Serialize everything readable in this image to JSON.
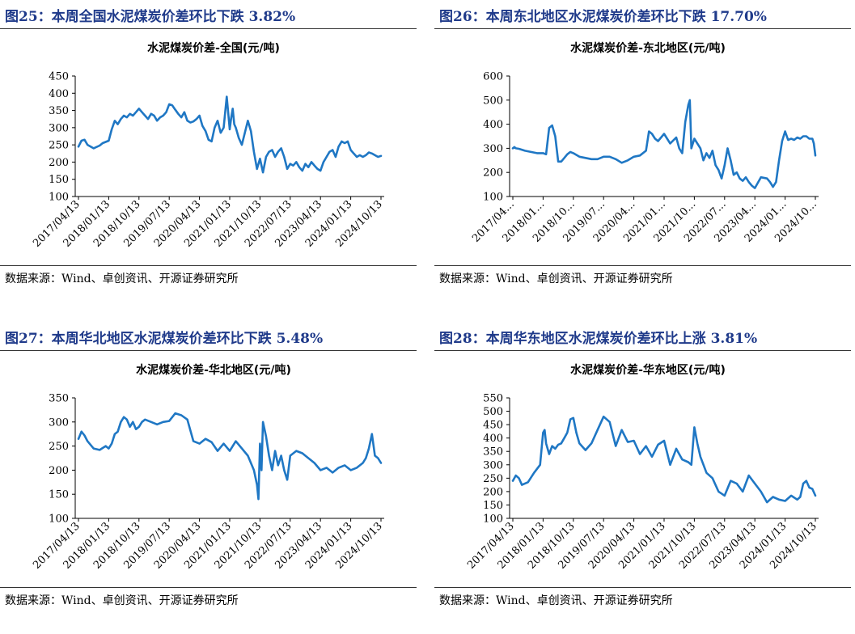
{
  "panels": [
    {
      "figure_title": "图25：本周全国水泥煤炭价差环比下跌 3.82%",
      "source": "数据来源：Wind、卓创资讯、开源证券研究所",
      "chart_data": {
        "type": "line",
        "title": "水泥煤炭价差-全国(元/吨)",
        "ylim": [
          100,
          450
        ],
        "yticks": [
          100,
          150,
          200,
          250,
          300,
          350,
          400,
          450
        ],
        "xlabels": [
          "2017/04/13",
          "2018/01/13",
          "2018/10/13",
          "2019/07/13",
          "2020/04/13",
          "2021/01/13",
          "2021/10/13",
          "2022/07/13",
          "2023/04/13",
          "2024/01/13",
          "2024/10/13"
        ],
        "series": [
          {
            "name": "",
            "color": "#1f77c4",
            "x": [
              0,
              0.1,
              0.2,
              0.3,
              0.5,
              0.7,
              0.8,
              1.0,
              1.1,
              1.2,
              1.3,
              1.4,
              1.5,
              1.6,
              1.7,
              1.8,
              1.9,
              2.0,
              2.1,
              2.2,
              2.3,
              2.4,
              2.5,
              2.6,
              2.7,
              2.8,
              2.9,
              3.0,
              3.1,
              3.2,
              3.3,
              3.4,
              3.5,
              3.6,
              3.7,
              3.8,
              3.9,
              4.0,
              4.1,
              4.2,
              4.3,
              4.4,
              4.5,
              4.6,
              4.7,
              4.8,
              4.9,
              5.0,
              5.05,
              5.1,
              5.15,
              5.2,
              5.3,
              5.4,
              5.5,
              5.6,
              5.7,
              5.8,
              5.9,
              6.0,
              6.1,
              6.2,
              6.3,
              6.4,
              6.5,
              6.6,
              6.7,
              6.8,
              6.9,
              7.0,
              7.1,
              7.2,
              7.3,
              7.4,
              7.5,
              7.6,
              7.7,
              7.8,
              7.9,
              8.0,
              8.1,
              8.2,
              8.3,
              8.4,
              8.5,
              8.6,
              8.7,
              8.8,
              8.9,
              9.0,
              9.1,
              9.2,
              9.3,
              9.4,
              9.5,
              9.6,
              9.7,
              9.8,
              9.9,
              10.0
            ],
            "y": [
              245,
              262,
              265,
              250,
              240,
              248,
              255,
              262,
              295,
              320,
              310,
              325,
              335,
              330,
              340,
              335,
              345,
              355,
              345,
              335,
              325,
              340,
              335,
              320,
              330,
              335,
              345,
              368,
              365,
              352,
              340,
              330,
              345,
              320,
              315,
              318,
              325,
              335,
              305,
              290,
              265,
              260,
              300,
              320,
              285,
              300,
              390,
              295,
              330,
              355,
              310,
              300,
              270,
              250,
              285,
              320,
              290,
              230,
              180,
              210,
              170,
              215,
              230,
              235,
              215,
              230,
              240,
              215,
              180,
              195,
              190,
              200,
              185,
              175,
              195,
              185,
              200,
              190,
              180,
              175,
              200,
              215,
              230,
              235,
              215,
              245,
              260,
              255,
              260,
              235,
              225,
              215,
              220,
              215,
              220,
              228,
              225,
              220,
              215,
              218
            ]
          }
        ]
      }
    },
    {
      "figure_title": "图26：本周东北地区水泥煤炭价差环比下跌 17.70%",
      "source": "数据来源：Wind、卓创资讯、开源证券研究所",
      "chart_data": {
        "type": "line",
        "title": "水泥煤炭价差-东北地区(元/吨)",
        "ylim": [
          100,
          600
        ],
        "yticks": [
          100,
          200,
          300,
          400,
          500,
          600
        ],
        "xlabels": [
          "2017/04...",
          "2018/01...",
          "2018/10...",
          "2019/07...",
          "2020/04...",
          "2021/01...",
          "2021/10...",
          "2022/07...",
          "2023/04...",
          "2024/01...",
          "2024/10..."
        ],
        "series": [
          {
            "name": "",
            "color": "#1f77c4",
            "x": [
              0,
              0.05,
              0.1,
              0.2,
              0.4,
              0.6,
              0.8,
              1.0,
              1.1,
              1.2,
              1.3,
              1.4,
              1.5,
              1.6,
              1.7,
              1.8,
              1.9,
              2.0,
              2.2,
              2.4,
              2.6,
              2.8,
              3.0,
              3.2,
              3.4,
              3.6,
              3.8,
              4.0,
              4.2,
              4.4,
              4.5,
              4.6,
              4.7,
              4.8,
              5.0,
              5.2,
              5.4,
              5.5,
              5.6,
              5.7,
              5.8,
              5.85,
              5.9,
              6.0,
              6.1,
              6.2,
              6.3,
              6.4,
              6.5,
              6.6,
              6.7,
              6.8,
              6.9,
              7.0,
              7.1,
              7.2,
              7.3,
              7.4,
              7.5,
              7.6,
              7.7,
              7.8,
              7.9,
              8.0,
              8.2,
              8.4,
              8.5,
              8.6,
              8.7,
              8.8,
              8.9,
              9.0,
              9.1,
              9.2,
              9.3,
              9.4,
              9.5,
              9.6,
              9.7,
              9.8,
              9.9,
              9.95,
              10.0
            ],
            "y": [
              300,
              305,
              300,
              298,
              290,
              285,
              280,
              280,
              275,
              385,
              395,
              350,
              245,
              245,
              260,
              275,
              285,
              280,
              265,
              260,
              255,
              255,
              265,
              265,
              255,
              240,
              250,
              265,
              270,
              290,
              370,
              360,
              340,
              330,
              360,
              320,
              345,
              300,
              280,
              410,
              480,
              500,
              300,
              340,
              320,
              300,
              250,
              280,
              260,
              290,
              230,
              210,
              175,
              230,
              300,
              250,
              190,
              200,
              175,
              165,
              180,
              160,
              145,
              135,
              180,
              175,
              160,
              140,
              160,
              250,
              330,
              370,
              335,
              340,
              335,
              345,
              340,
              350,
              350,
              340,
              340,
              320,
              270
            ]
          }
        ]
      }
    },
    {
      "figure_title": "图27：本周华北地区水泥煤炭价差环比下跌 5.48%",
      "source": "数据来源：Wind、卓创资讯、开源证券研究所",
      "chart_data": {
        "type": "line",
        "title": "水泥煤炭价差-华北地区(元/吨)",
        "ylim": [
          100,
          350
        ],
        "yticks": [
          100,
          150,
          200,
          250,
          300,
          350
        ],
        "xlabels": [
          "2017/04/13",
          "2018/01/13",
          "2018/10/13",
          "2019/07/13",
          "2020/04/13",
          "2021/01/13",
          "2021/10/13",
          "2022/07/13",
          "2023/04/13",
          "2024/01/13",
          "2024/10/13"
        ],
        "series": [
          {
            "name": "",
            "color": "#1f77c4",
            "x": [
              0,
              0.1,
              0.2,
              0.3,
              0.5,
              0.7,
              0.9,
              1.0,
              1.1,
              1.2,
              1.3,
              1.4,
              1.5,
              1.6,
              1.7,
              1.8,
              1.9,
              2.0,
              2.1,
              2.2,
              2.4,
              2.6,
              2.8,
              3.0,
              3.2,
              3.4,
              3.6,
              3.8,
              4.0,
              4.2,
              4.4,
              4.6,
              4.8,
              5.0,
              5.2,
              5.4,
              5.6,
              5.8,
              5.9,
              5.95,
              6.0,
              6.05,
              6.1,
              6.2,
              6.3,
              6.4,
              6.5,
              6.6,
              6.7,
              6.8,
              6.9,
              7.0,
              7.2,
              7.4,
              7.6,
              7.8,
              8.0,
              8.2,
              8.4,
              8.6,
              8.8,
              9.0,
              9.2,
              9.4,
              9.5,
              9.6,
              9.7,
              9.8,
              9.9,
              10.0
            ],
            "y": [
              265,
              280,
              272,
              260,
              245,
              242,
              250,
              245,
              255,
              275,
              280,
              300,
              310,
              305,
              290,
              300,
              285,
              290,
              300,
              305,
              300,
              295,
              300,
              302,
              318,
              314,
              305,
              260,
              255,
              265,
              258,
              240,
              255,
              240,
              260,
              245,
              230,
              200,
              170,
              140,
              255,
              200,
              300,
              270,
              230,
              200,
              240,
              210,
              230,
              200,
              180,
              230,
              240,
              235,
              225,
              215,
              200,
              205,
              195,
              205,
              210,
              200,
              205,
              215,
              225,
              245,
              275,
              230,
              225,
              215
            ]
          }
        ]
      }
    },
    {
      "figure_title": "图28：本周华东地区水泥煤炭价差环比上涨 3.81%",
      "source": "数据来源：Wind、卓创资讯、开源证券研究所",
      "chart_data": {
        "type": "line",
        "title": "水泥煤炭价差-华东地区(元/吨)",
        "ylim": [
          100,
          550
        ],
        "yticks": [
          100,
          150,
          200,
          250,
          300,
          350,
          400,
          450,
          500,
          550
        ],
        "xlabels": [
          "2017/04/13",
          "2018/01/13",
          "2018/10/13",
          "2019/07/13",
          "2020/04/13",
          "2021/01/13",
          "2021/10/13",
          "2022/07/13",
          "2023/04/13",
          "2024/01/13",
          "2024/10/13"
        ],
        "series": [
          {
            "name": "",
            "color": "#1f77c4",
            "x": [
              0,
              0.1,
              0.2,
              0.3,
              0.5,
              0.7,
              0.9,
              1.0,
              1.05,
              1.1,
              1.2,
              1.3,
              1.4,
              1.5,
              1.6,
              1.7,
              1.8,
              1.9,
              2.0,
              2.1,
              2.2,
              2.4,
              2.6,
              2.8,
              3.0,
              3.2,
              3.4,
              3.6,
              3.8,
              4.0,
              4.2,
              4.4,
              4.6,
              4.8,
              5.0,
              5.2,
              5.4,
              5.6,
              5.8,
              5.9,
              6.0,
              6.1,
              6.2,
              6.4,
              6.6,
              6.8,
              7.0,
              7.2,
              7.4,
              7.6,
              7.8,
              8.0,
              8.2,
              8.4,
              8.6,
              8.8,
              9.0,
              9.2,
              9.4,
              9.5,
              9.6,
              9.7,
              9.8,
              9.9,
              10.0
            ],
            "y": [
              240,
              260,
              250,
              225,
              235,
              270,
              300,
              420,
              430,
              380,
              340,
              370,
              360,
              375,
              380,
              400,
              420,
              470,
              475,
              420,
              380,
              355,
              380,
              430,
              480,
              460,
              370,
              430,
              385,
              390,
              340,
              370,
              330,
              375,
              390,
              300,
              360,
              320,
              310,
              300,
              440,
              380,
              330,
              270,
              250,
              200,
              185,
              240,
              230,
              200,
              260,
              230,
              200,
              160,
              180,
              170,
              165,
              185,
              170,
              180,
              230,
              240,
              215,
              210,
              185
            ]
          }
        ]
      }
    }
  ]
}
